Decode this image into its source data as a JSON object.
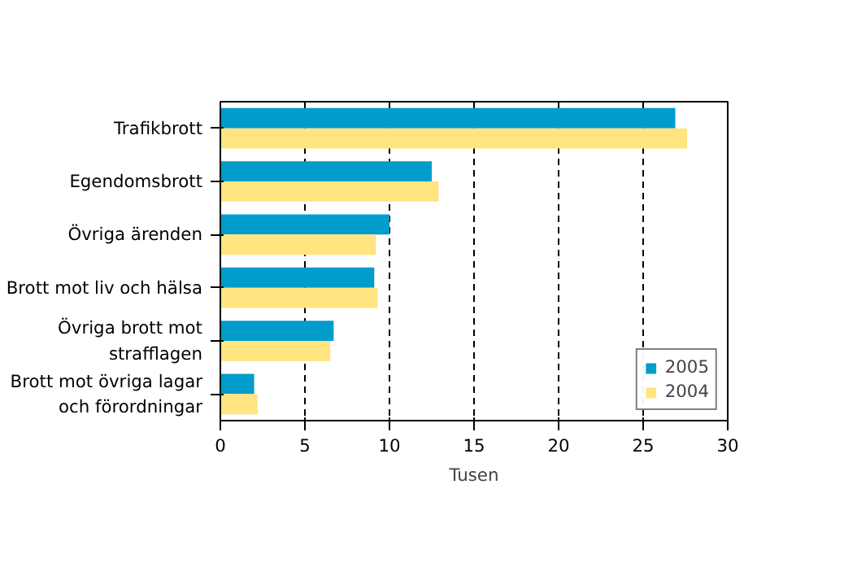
{
  "chart_data": {
    "type": "bar",
    "orientation": "horizontal",
    "xlabel": "Tusen",
    "categories": [
      "Trafikbrott",
      "Egendomsbrott",
      "Övriga ärenden",
      "Brott mot liv och hälsa",
      "Övriga brott mot\nstrafflagen",
      "Brott mot övriga lagar\noch förordningar"
    ],
    "series": [
      {
        "name": "2005",
        "color": "#009ccc",
        "values": [
          26.9,
          12.5,
          10.0,
          9.1,
          6.7,
          2.0
        ]
      },
      {
        "name": "2004",
        "color": "#ffe47f",
        "values": [
          27.6,
          12.9,
          9.2,
          9.3,
          6.5,
          2.2
        ]
      }
    ],
    "xlim": [
      0,
      30
    ],
    "xticks": [
      0,
      5,
      10,
      15,
      20,
      25,
      30
    ],
    "grid": "x",
    "legend": "bottom right"
  }
}
